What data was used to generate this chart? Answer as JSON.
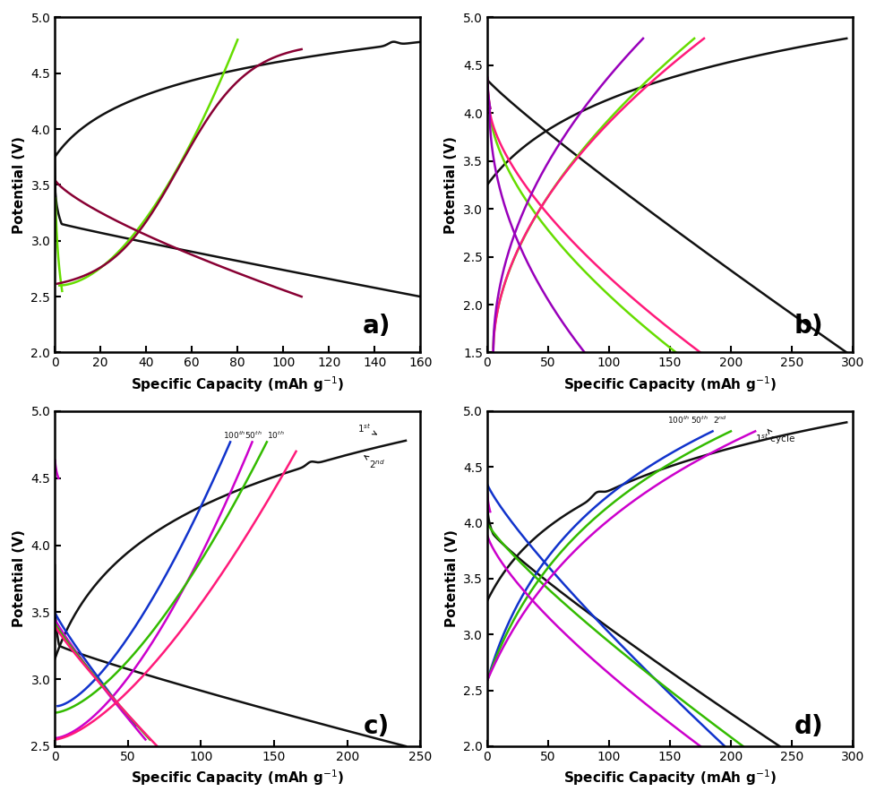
{
  "panel_a": {
    "label": "a)",
    "xlim": [
      0,
      160
    ],
    "ylim": [
      2.0,
      5.0
    ],
    "xticks": [
      0,
      20,
      40,
      60,
      80,
      100,
      120,
      140,
      160
    ],
    "yticks": [
      2.0,
      2.5,
      3.0,
      3.5,
      4.0,
      4.5,
      5.0
    ]
  },
  "panel_b": {
    "label": "b)",
    "xlim": [
      0,
      300
    ],
    "ylim": [
      1.5,
      5.0
    ],
    "xticks": [
      0,
      50,
      100,
      150,
      200,
      250,
      300
    ],
    "yticks": [
      1.5,
      2.0,
      2.5,
      3.0,
      3.5,
      4.0,
      4.5,
      5.0
    ]
  },
  "panel_c": {
    "label": "c)",
    "xlim": [
      0,
      250
    ],
    "ylim": [
      2.5,
      5.0
    ],
    "xticks": [
      0,
      50,
      100,
      150,
      200,
      250
    ],
    "yticks": [
      2.5,
      3.0,
      3.5,
      4.0,
      4.5,
      5.0
    ]
  },
  "panel_d": {
    "label": "d)",
    "xlim": [
      0,
      300
    ],
    "ylim": [
      2.0,
      5.0
    ],
    "xticks": [
      0,
      50,
      100,
      150,
      200,
      250,
      300
    ],
    "yticks": [
      2.0,
      2.5,
      3.0,
      3.5,
      4.0,
      4.5,
      5.0
    ]
  },
  "colors": {
    "black": "#111111",
    "lime": "#66dd00",
    "crimson": "#880033",
    "hotpink": "#ff1a7a",
    "purple": "#9900bb",
    "blue": "#1133cc",
    "magenta": "#cc00cc",
    "green": "#33bb00"
  }
}
